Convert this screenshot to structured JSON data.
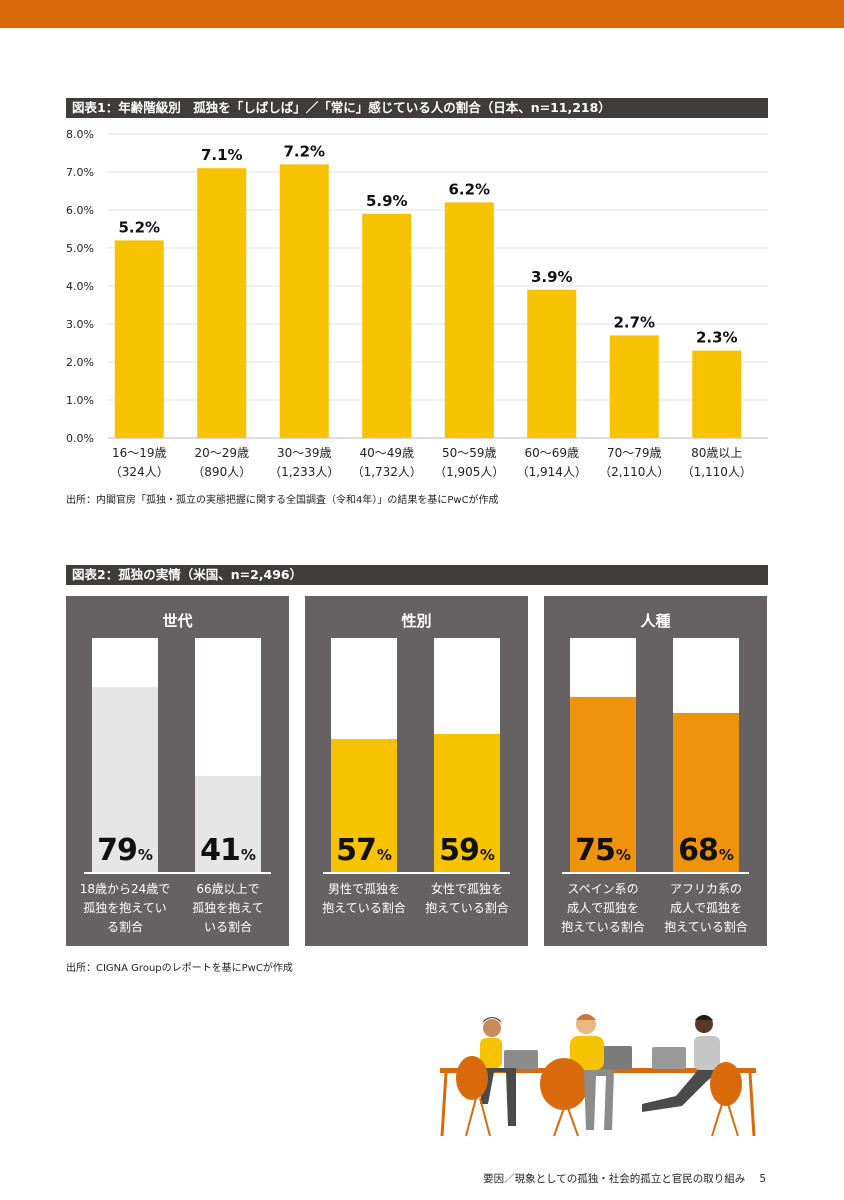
{
  "colors": {
    "top_band": "#d86a0c",
    "title_bar_bg": "#403c3c",
    "chart1_bar": "#f7c200",
    "panel_bg": "#666263",
    "generation_fill": "#e6e6e6",
    "gender_fill": "#f7c200",
    "race_fill": "#ee930b"
  },
  "chart1": {
    "title": "図表1：年齢階級別　孤独を「しばしば」／「常に」感じている人の割合（日本、n=11,218）",
    "source": "出所：内閣官房「孤独・孤立の実態把握に関する全国調査（令和4年）」の結果を基にPwCが作成"
  },
  "chart_data": [
    {
      "type": "bar",
      "title": "図表1：年齢階級別　孤独を「しばしば」／「常に」感じている人の割合（日本、n=11,218）",
      "categories": [
        "16〜19歳",
        "20〜29歳",
        "30〜39歳",
        "40〜49歳",
        "50〜59歳",
        "60〜69歳",
        "70〜79歳",
        "80歳以上"
      ],
      "category_counts": [
        "（324人）",
        "（890人）",
        "（1,233人）",
        "（1,732人）",
        "（1,905人）",
        "（1,914人）",
        "（2,110人）",
        "（1,110人）"
      ],
      "values": [
        5.2,
        7.1,
        7.2,
        5.9,
        6.2,
        3.9,
        2.7,
        2.3
      ],
      "value_labels": [
        "5.2%",
        "7.1%",
        "7.2%",
        "5.9%",
        "6.2%",
        "3.9%",
        "2.7%",
        "2.3%"
      ],
      "y_ticks": [
        "0.0%",
        "1.0%",
        "2.0%",
        "3.0%",
        "4.0%",
        "5.0%",
        "6.0%",
        "7.0%",
        "8.0%"
      ],
      "ylim": [
        0,
        8
      ],
      "grid": true,
      "xlabel": "",
      "ylabel": ""
    },
    {
      "type": "bar",
      "title": "図表2：孤独の実情（米国、n=2,496）",
      "groups": [
        {
          "name": "世代",
          "bars": [
            {
              "value": 79,
              "caption": "18歳から24歳で\n孤独を抱えてい\nる割合"
            },
            {
              "value": 41,
              "caption": "66歳以上で\n孤独を抱えて\nいる割合"
            }
          ]
        },
        {
          "name": "性別",
          "bars": [
            {
              "value": 57,
              "caption": "男性で孤独を\n抱えている割合"
            },
            {
              "value": 59,
              "caption": "女性で孤独を\n抱えている割合"
            }
          ]
        },
        {
          "name": "人種",
          "bars": [
            {
              "value": 75,
              "caption": "スペイン系の\n成人で孤独を\n抱えている割合"
            },
            {
              "value": 68,
              "caption": "アフリカ系の\n成人で孤独を\n抱えている割合"
            }
          ]
        }
      ],
      "unit": "%",
      "ylim": [
        0,
        100
      ]
    }
  ],
  "chart2": {
    "title": "図表2：孤独の実情（米国、n=2,496）",
    "source": "出所：CIGNA Groupのレポートを基にPwCが作成"
  },
  "footer": {
    "text": "要因／現象としての孤独・社会的孤立と官民の取り組み",
    "page": "5"
  }
}
